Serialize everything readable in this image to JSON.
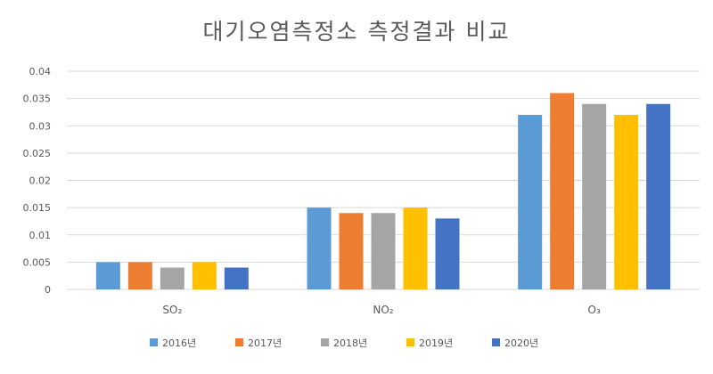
{
  "chart_data": {
    "type": "bar",
    "title": "대기오염측정소 측정결과 비교",
    "xlabel": "",
    "ylabel": "",
    "categories": [
      "SO₂",
      "NO₂",
      "O₃"
    ],
    "y_ticks": [
      "0",
      "0.005",
      "0.01",
      "0.015",
      "0.02",
      "0.025",
      "0.03",
      "0.035",
      "0.04"
    ],
    "ylim": [
      0,
      0.04
    ],
    "grid": true,
    "legend_position": "bottom",
    "series": [
      {
        "name": "2016년",
        "color": "#5B9BD5",
        "values": [
          0.005,
          0.015,
          0.032
        ]
      },
      {
        "name": "2017년",
        "color": "#ED7D31",
        "values": [
          0.005,
          0.014,
          0.036
        ]
      },
      {
        "name": "2018년",
        "color": "#A5A5A5",
        "values": [
          0.004,
          0.014,
          0.034
        ]
      },
      {
        "name": "2019년",
        "color": "#FFC000",
        "values": [
          0.005,
          0.015,
          0.032
        ]
      },
      {
        "name": "2020년",
        "color": "#4472C4",
        "values": [
          0.004,
          0.013,
          0.034
        ]
      }
    ]
  }
}
